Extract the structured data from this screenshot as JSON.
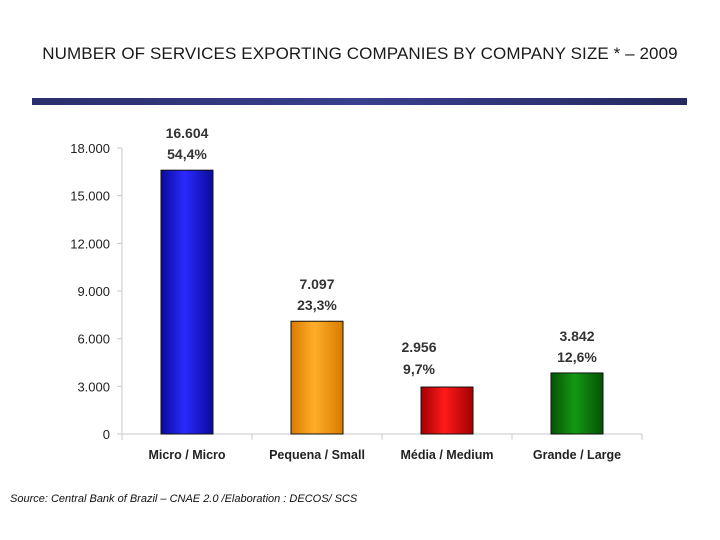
{
  "title": "NUMBER OF SERVICES EXPORTING COMPANIES BY COMPANY SIZE * – 2009",
  "source": "Source: Central Bank of Brazil – CNAE 2.0 /Elaboration : DECOS/ SCS",
  "chart_data": {
    "type": "bar",
    "title": "NUMBER OF SERVICES EXPORTING COMPANIES BY COMPANY SIZE * – 2009",
    "categories": [
      "Micro / Micro",
      "Pequena / Small",
      "Média / Medium",
      "Grande / Large"
    ],
    "values": [
      16604,
      7097,
      2956,
      3842
    ],
    "value_labels": [
      "16.604",
      "7.097",
      "2.956",
      "3.842"
    ],
    "percent_labels": [
      "54,4%",
      "23,3%",
      "9,7%",
      "12,6%"
    ],
    "colors": [
      "#1010d8",
      "#ff9a00",
      "#e30000",
      "#0a7a0a"
    ],
    "yticks": [
      0,
      3000,
      6000,
      9000,
      12000,
      15000,
      18000
    ],
    "ytick_labels": [
      "0",
      "3.000",
      "6.000",
      "9.000",
      "12.000",
      "15.000",
      "18.000"
    ],
    "ylim": [
      0,
      18000
    ],
    "grid": false,
    "xlabel": "",
    "ylabel": ""
  }
}
